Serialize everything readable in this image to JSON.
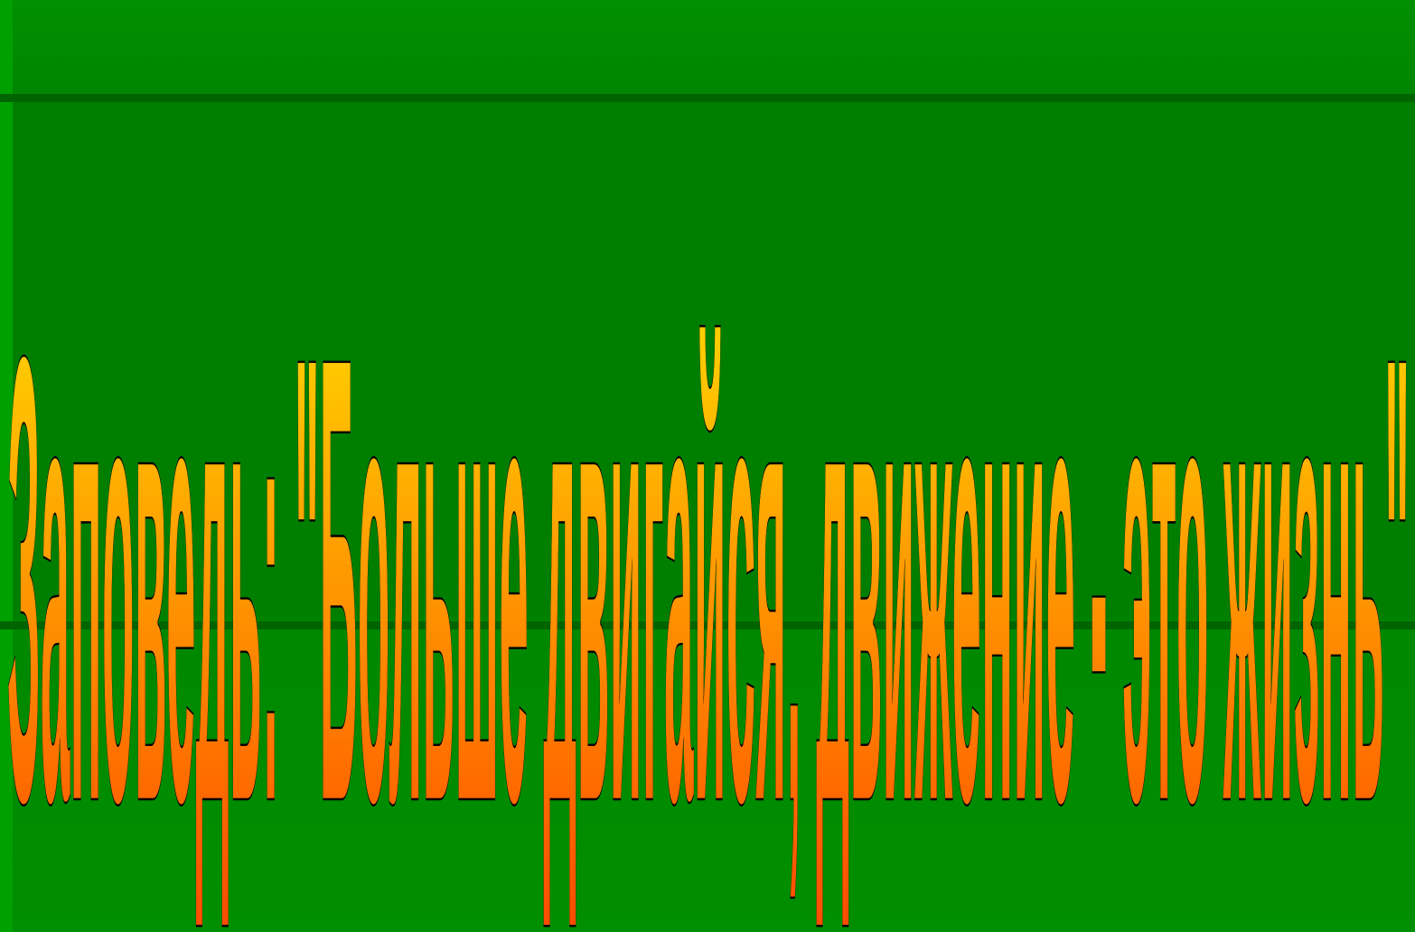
{
  "slide": {
    "title": "Заповедь: \"Больше двигайся, движение - это жизнь\"",
    "colors": {
      "background": "#008000",
      "band_line": "#006400",
      "text_fill_top": "#ffe600",
      "text_fill_bottom": "#ff4a00",
      "text_stroke": "#000000"
    }
  }
}
